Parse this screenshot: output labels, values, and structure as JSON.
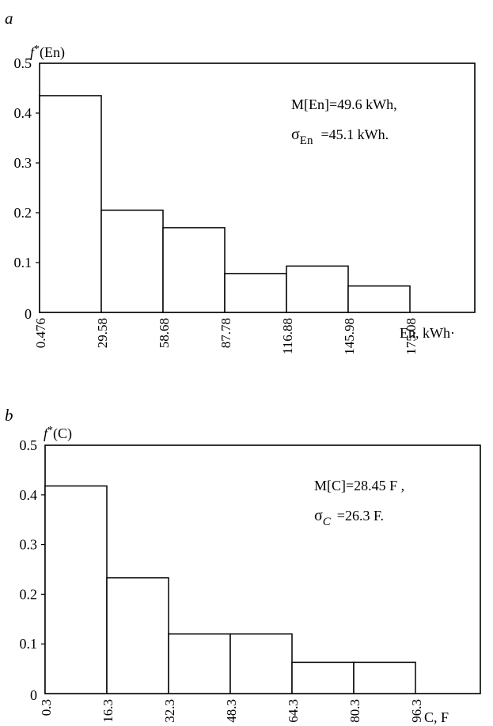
{
  "chart_data": [
    {
      "type": "bar",
      "panel_label": "a",
      "ylabel": "f*(En)",
      "ylabel_main": "f",
      "ylabel_star": "*",
      "ylabel_arg": "(En)",
      "xlabel": "En, kWh·",
      "ylim": [
        0,
        0.5
      ],
      "yticks": [
        "0",
        "0.1",
        "0.2",
        "0.3",
        "0.4",
        "0.5"
      ],
      "xticks": [
        "0.476",
        "29.58",
        "58.68",
        "87.78",
        "116.88",
        "145.98",
        "175.08"
      ],
      "values": [
        0.435,
        0.205,
        0.17,
        0.078,
        0.093,
        0.053
      ],
      "annotation_line1": "M[En]=49.6 kWh,",
      "annotation_sigma": "σ",
      "annotation_sub": "En",
      "annotation_line2": "=45.1 kWh."
    },
    {
      "type": "bar",
      "panel_label": "b",
      "ylabel": "f*(C)",
      "ylabel_main": "f",
      "ylabel_star": "*",
      "ylabel_arg": "(C)",
      "xlabel": "C, F",
      "ylim": [
        0,
        0.5
      ],
      "yticks": [
        "0",
        "0.1",
        "0.2",
        "0.3",
        "0.4",
        "0.5"
      ],
      "xticks": [
        "0.3",
        "16.3",
        "32.3",
        "48.3",
        "64.3",
        "80.3",
        "96.3"
      ],
      "values": [
        0.418,
        0.233,
        0.12,
        0.12,
        0.063,
        0.063
      ],
      "annotation_line1": "M[C]=28.45 F ,",
      "annotation_sigma": "σ",
      "annotation_sub": "C",
      "annotation_line2": "=26.3 F."
    }
  ]
}
